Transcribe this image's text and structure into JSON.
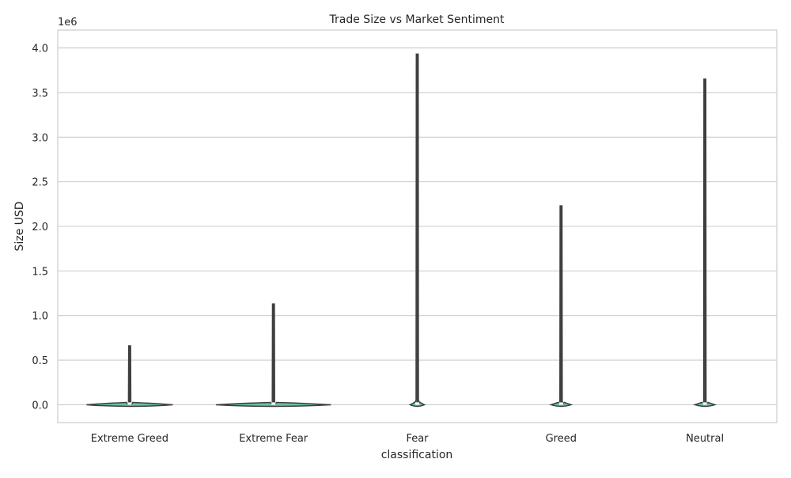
{
  "chart_data": {
    "type": "violin",
    "title": "Trade Size vs Market Sentiment",
    "xlabel": "classification",
    "ylabel": "Size USD",
    "y_offset_label": "1e6",
    "y_scale_factor": 1000000,
    "categories": [
      "Extreme Greed",
      "Extreme Fear",
      "Fear",
      "Greed",
      "Neutral"
    ],
    "ylim": [
      -200000,
      4200000
    ],
    "yticks": [
      0,
      500000,
      1000000,
      1500000,
      2000000,
      2500000,
      3000000,
      3500000,
      4000000
    ],
    "ytick_labels": [
      "0.0",
      "0.5",
      "1.0",
      "1.5",
      "2.0",
      "2.5",
      "3.0",
      "3.5",
      "4.0"
    ],
    "grid": true,
    "violins": [
      {
        "category": "Extreme Greed",
        "min": 0,
        "max": 660000,
        "body_halfwidth": 0.3,
        "bump_top": 25000
      },
      {
        "category": "Extreme Fear",
        "min": 0,
        "max": 1130000,
        "body_halfwidth": 0.4,
        "bump_top": 35000
      },
      {
        "category": "Fear",
        "min": 0,
        "max": 3930000,
        "body_halfwidth": 0.05,
        "bump_top": 60000
      },
      {
        "category": "Greed",
        "min": 0,
        "max": 2230000,
        "body_halfwidth": 0.07,
        "bump_top": 45000
      },
      {
        "category": "Neutral",
        "min": 0,
        "max": 3650000,
        "body_halfwidth": 0.07,
        "bump_top": 40000
      }
    ],
    "colors": {
      "body_fill": "#66c2a5",
      "edge": "#3f3f3f",
      "grid": "#cccccc",
      "spine": "#cccccc"
    }
  }
}
